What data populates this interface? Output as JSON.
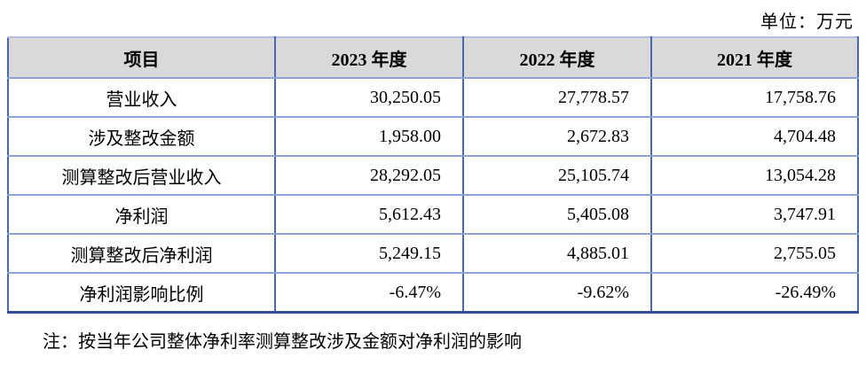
{
  "unit_label": "单位：万元",
  "table": {
    "columns": [
      "项目",
      "2023 年度",
      "2022 年度",
      "2021 年度"
    ],
    "rows": [
      [
        "营业收入",
        "30,250.05",
        "27,778.57",
        "17,758.76"
      ],
      [
        "涉及整改金额",
        "1,958.00",
        "2,672.83",
        "4,704.48"
      ],
      [
        "测算整改后营业收入",
        "28,292.05",
        "25,105.74",
        "13,054.28"
      ],
      [
        "净利润",
        "5,612.43",
        "5,405.08",
        "3,747.91"
      ],
      [
        "测算整改后净利润",
        "5,249.15",
        "4,885.01",
        "2,755.05"
      ],
      [
        "净利润影响比例",
        "-6.47%",
        "-9.62%",
        "-26.49%"
      ]
    ]
  },
  "note": "注：按当年公司整体净利率测算整改涉及金额对净利润的影响",
  "colors": {
    "header_bg": "#d9d9d9",
    "border_vertical": "#4a67b2",
    "border_horizontal": "#8da3d8",
    "border_top_outer": "#b3bfdd",
    "border_bottom_outer": "#2e4d9b",
    "text": "#000000",
    "background": "#ffffff"
  }
}
